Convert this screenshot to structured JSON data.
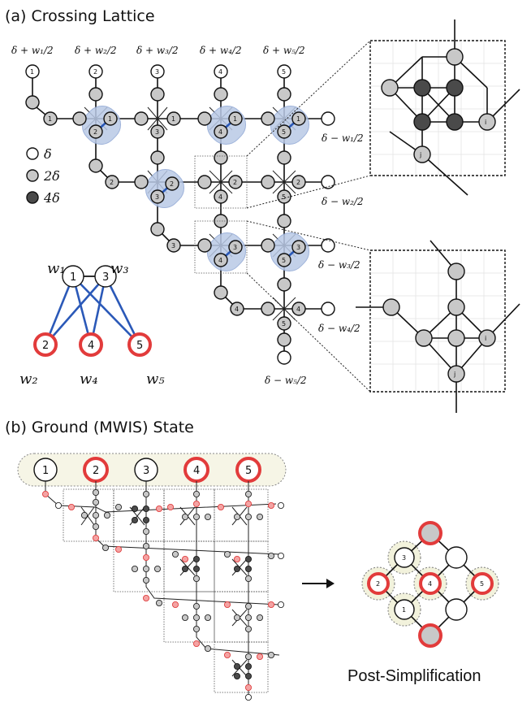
{
  "panel_a": {
    "title": "(a) Crossing Lattice",
    "top_labels": [
      "δ + w₁/2",
      "δ + w₂/2",
      "δ + w₃/2",
      "δ + w₄/2",
      "δ + w₅/2"
    ],
    "right_labels": [
      "δ − w₁/2",
      "δ − w₂/2",
      "δ − w₃/2",
      "δ − w₄/2",
      "δ − w₅/2"
    ],
    "legend": [
      {
        "symbol": "white",
        "label": "δ"
      },
      {
        "symbol": "gray",
        "label": "2δ"
      },
      {
        "symbol": "dark",
        "label": "4δ"
      }
    ],
    "graph": {
      "vertices": [
        "1",
        "3",
        "2",
        "4",
        "5"
      ],
      "weights": [
        "w₁",
        "w₃",
        "w₂",
        "w₄",
        "w₅"
      ]
    },
    "zoom_labels": {
      "i": "i",
      "j": "j"
    }
  },
  "panel_b": {
    "title": "(b) Ground (MWIS) State",
    "top_row": [
      "1",
      "2",
      "3",
      "4",
      "5"
    ],
    "post_label": "Post-Simplification",
    "post_numbers": [
      "3",
      "2",
      "4",
      "5",
      "1"
    ]
  },
  "colors": {
    "selected": "#e23b3b",
    "edge_blue": "#2b59b8",
    "gray": "#c8c8c8",
    "dark": "#4a4a4a"
  }
}
